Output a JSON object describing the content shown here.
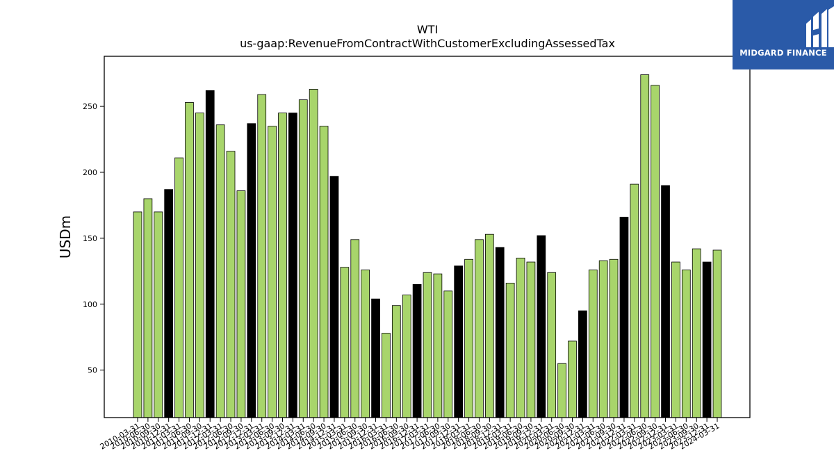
{
  "logo": {
    "text": "MIDGARD FINANCE",
    "background": "#2a5aa8"
  },
  "chart_data": {
    "type": "bar",
    "title": "WTI",
    "subtitle": "us-gaap:RevenueFromContractWithCustomerExcludingAssessedTax",
    "xlabel": "",
    "ylabel": "USDm",
    "ylim": [
      14,
      288
    ],
    "yticks": [
      50,
      100,
      150,
      200,
      250
    ],
    "grid": false,
    "colors": {
      "quarter": "#a8d56b",
      "fiscal_year_end": "#000000"
    },
    "categories": [
      "2010-03-31",
      "2010-06-30",
      "2010-09-30",
      "2010-12-31",
      "2011-03-31",
      "2011-06-30",
      "2011-09-30",
      "2011-12-31",
      "2012-03-31",
      "2012-06-30",
      "2012-09-30",
      "2012-12-31",
      "2013-03-31",
      "2013-06-30",
      "2013-09-30",
      "2013-12-31",
      "2014-03-31",
      "2014-06-30",
      "2014-09-30",
      "2014-12-31",
      "2015-03-31",
      "2015-06-30",
      "2015-09-30",
      "2015-12-31",
      "2016-03-31",
      "2016-06-30",
      "2016-09-30",
      "2016-12-31",
      "2017-03-31",
      "2017-06-30",
      "2017-09-30",
      "2017-12-31",
      "2018-03-31",
      "2018-06-30",
      "2018-09-30",
      "2018-12-31",
      "2019-03-31",
      "2019-06-30",
      "2019-09-30",
      "2019-12-31",
      "2020-03-31",
      "2020-06-30",
      "2020-09-30",
      "2020-12-31",
      "2021-03-31",
      "2021-06-30",
      "2021-09-30",
      "2021-12-31",
      "2022-03-31",
      "2022-06-30",
      "2022-09-30",
      "2022-12-31",
      "2023-03-31",
      "2023-06-30",
      "2023-09-30",
      "2023-12-31",
      "2024-03-31"
    ],
    "values": [
      170,
      180,
      170,
      187,
      211,
      253,
      245,
      262,
      236,
      216,
      186,
      237,
      259,
      235,
      245,
      245,
      255,
      263,
      235,
      197,
      128,
      149,
      126,
      104,
      78,
      99,
      107,
      115,
      124,
      123,
      110,
      129,
      134,
      149,
      153,
      143,
      116,
      135,
      132,
      152,
      124,
      55,
      72,
      95,
      126,
      133,
      134,
      166,
      191,
      274,
      266,
      190,
      132,
      126,
      142,
      132,
      141
    ],
    "fiscal_year_end": [
      3,
      7,
      11,
      15,
      19,
      23,
      27,
      31,
      35,
      39,
      43,
      47,
      51,
      55
    ]
  }
}
